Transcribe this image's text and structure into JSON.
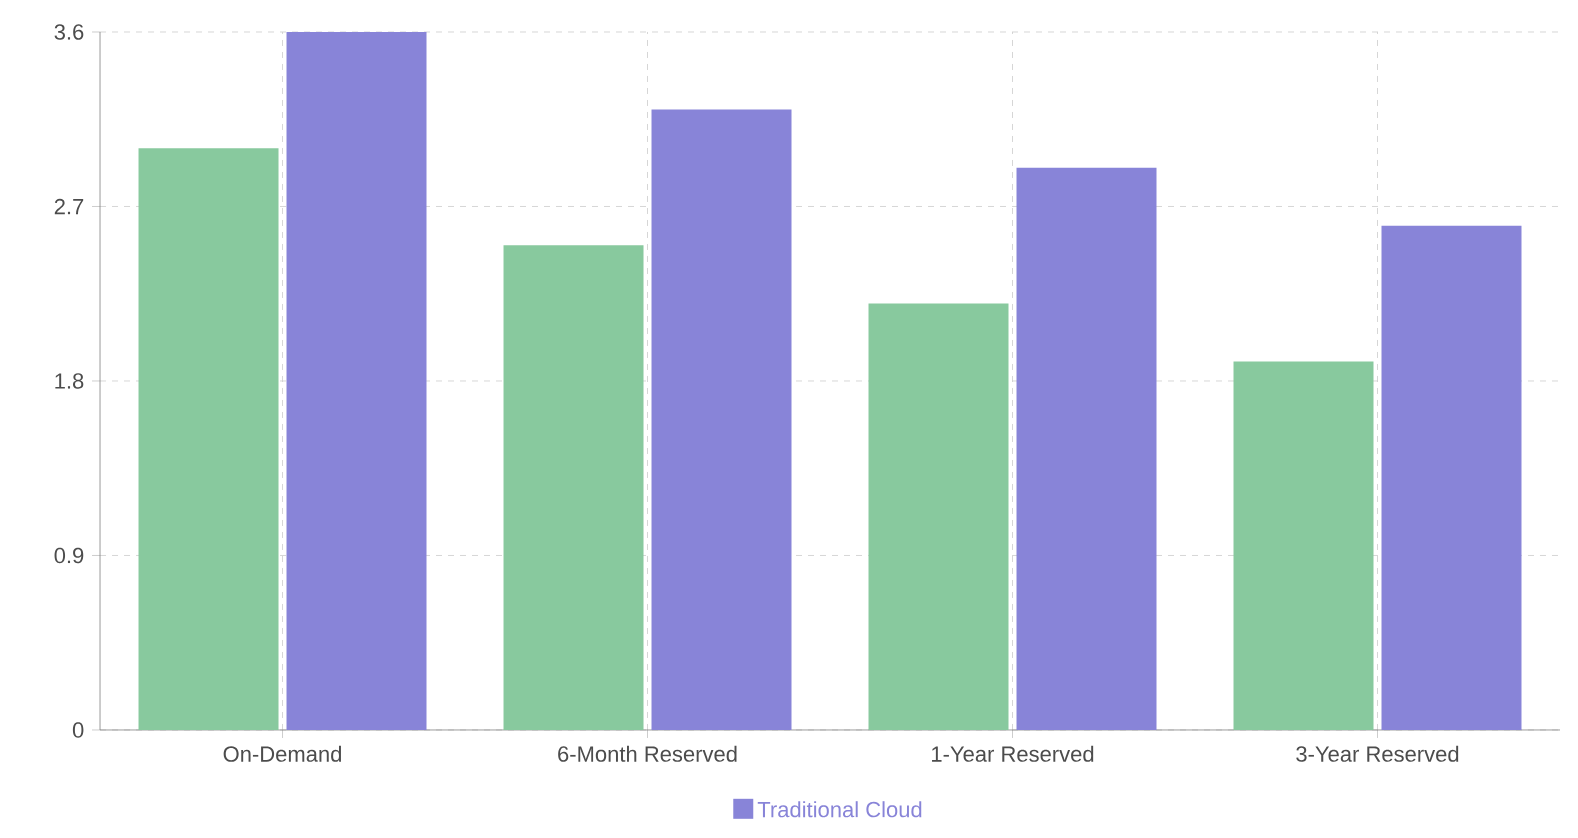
{
  "chart_data": {
    "type": "bar",
    "categories": [
      "On-Demand",
      "6-Month Reserved",
      "1-Year Reserved",
      "3-Year Reserved"
    ],
    "series": [
      {
        "color": "#88c99e",
        "values": [
          3.0,
          2.5,
          2.2,
          1.9
        ]
      },
      {
        "name": "Traditional Cloud",
        "color": "#8884d8",
        "values": [
          3.6,
          3.2,
          2.9,
          2.6
        ]
      }
    ],
    "ylim": [
      0,
      3.6
    ],
    "yticks": [
      0,
      0.9,
      1.8,
      2.7,
      3.6
    ],
    "grid": true,
    "legend": "bottom"
  }
}
